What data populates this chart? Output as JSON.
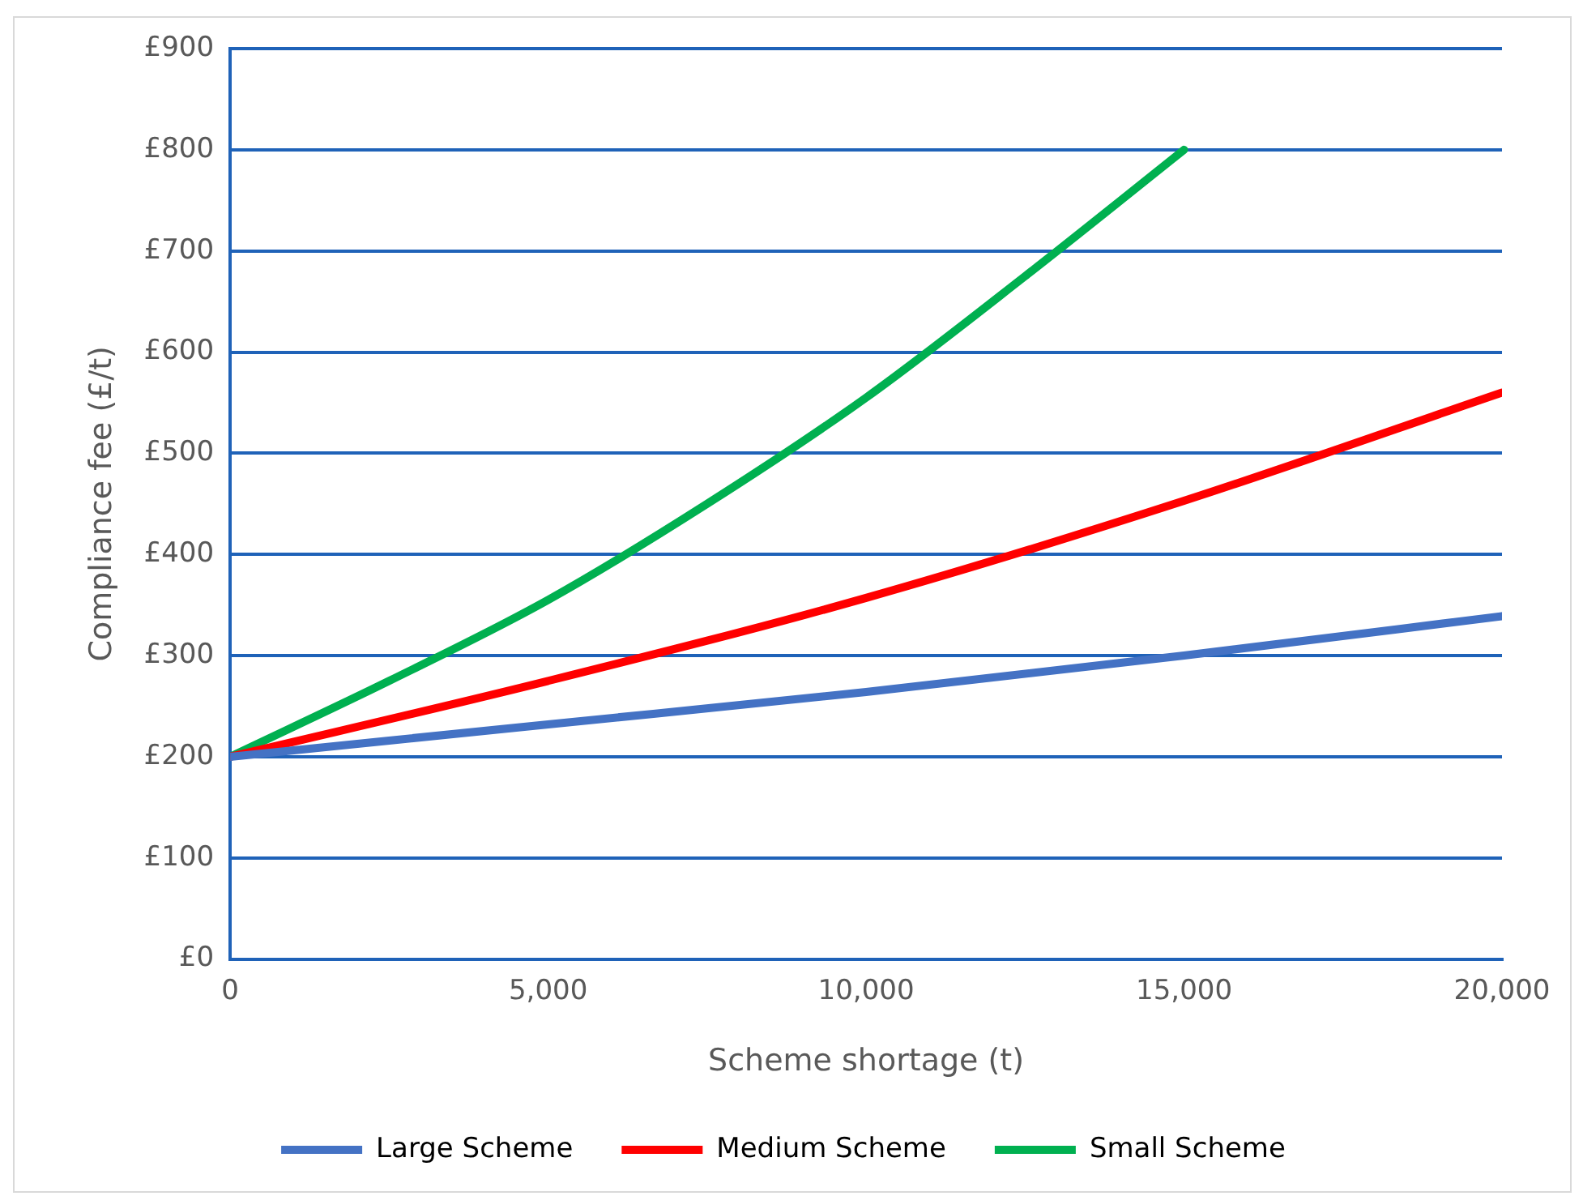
{
  "chart_data": {
    "type": "line",
    "xlabel": "Scheme shortage (t)",
    "ylabel": "Compliance fee (£/t)",
    "series": [
      {
        "name": "Large Scheme",
        "color": "#4472c4",
        "x": [
          0,
          5000,
          10000,
          15000,
          20000
        ],
        "values": [
          200,
          232,
          264,
          300,
          339
        ]
      },
      {
        "name": "Medium Scheme",
        "color": "#ff0000",
        "x": [
          0,
          5000,
          10000,
          15000,
          20000
        ],
        "values": [
          200,
          275,
          357,
          453,
          560
        ]
      },
      {
        "name": "Small Scheme",
        "color": "#00b050",
        "x": [
          0,
          2500,
          5000,
          7500,
          10000,
          12500,
          15000
        ],
        "values": [
          200,
          275,
          355,
          450,
          555,
          675,
          800
        ]
      }
    ],
    "xlim": [
      0,
      20000
    ],
    "xticks": [
      0,
      {
        "value": 5000,
        "label": "5,000"
      },
      {
        "value": 10000,
        "label": "10,000"
      },
      {
        "value": 15000,
        "label": "15,000"
      },
      {
        "value": 20000,
        "label": "20,000"
      }
    ],
    "ylim": [
      0,
      900
    ],
    "yticks": [
      {
        "value": 0,
        "label": "£0"
      },
      {
        "value": 100,
        "label": "£100"
      },
      {
        "value": 200,
        "label": "£200"
      },
      {
        "value": 300,
        "label": "£300"
      },
      {
        "value": 400,
        "label": "£400"
      },
      {
        "value": 500,
        "label": "£500"
      },
      {
        "value": 600,
        "label": "£600"
      },
      {
        "value": 700,
        "label": "£700"
      },
      {
        "value": 800,
        "label": "£800"
      },
      {
        "value": 900,
        "label": "£900"
      }
    ],
    "grid": "y",
    "legend": "bottom",
    "marker": "none",
    "line_style": "solid"
  }
}
